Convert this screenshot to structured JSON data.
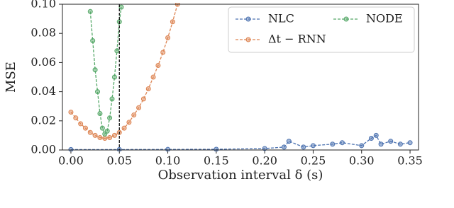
{
  "chart_data": {
    "type": "line",
    "xlabel": "Observation interval δ (s)",
    "ylabel": "MSE",
    "xlim": [
      -0.00875,
      0.35875
    ],
    "ylim": [
      0,
      0.1
    ],
    "xticks": [
      {
        "value": 0,
        "label": "0.00"
      },
      0.05,
      {
        "value": 0.1,
        "label": "0.10"
      },
      0.15,
      {
        "value": 0.2,
        "label": "0.20"
      },
      0.25,
      {
        "value": 0.3,
        "label": "0.30"
      },
      0.35
    ],
    "yticks": [
      {
        "value": 0,
        "label": "0.00"
      },
      0.02,
      0.04,
      0.06,
      0.08,
      {
        "value": 0.1,
        "label": "0.10"
      }
    ],
    "vline_x": 0.05,
    "vline_color": "#000000",
    "legend": "upper right",
    "series": [
      {
        "name": "NLC",
        "color": "#4c72b0",
        "x": [
          0,
          0.05,
          0.1,
          0.15,
          0.2,
          0.22,
          0.225,
          0.24,
          0.25,
          0.27,
          0.28,
          0.3,
          0.31,
          0.315,
          0.32,
          0.33,
          0.34,
          0.35
        ],
        "values": [
          0.0003,
          0.0003,
          0.0004,
          0.0005,
          0.001,
          0.002,
          0.006,
          0.002,
          0.003,
          0.004,
          0.005,
          0.003,
          0.008,
          0.01,
          0.004,
          0.006,
          0.004,
          0.005
        ]
      },
      {
        "name": "Δt − RNN",
        "color": "#dd8452",
        "x": [
          0,
          0.005,
          0.01,
          0.015,
          0.02,
          0.025,
          0.03,
          0.035,
          0.04,
          0.045,
          0.05,
          0.055,
          0.06,
          0.065,
          0.07,
          0.075,
          0.08,
          0.085,
          0.09,
          0.095,
          0.1,
          0.105,
          0.11
        ],
        "values": [
          0.026,
          0.022,
          0.018,
          0.015,
          0.012,
          0.01,
          0.0085,
          0.008,
          0.0085,
          0.01,
          0.012,
          0.015,
          0.019,
          0.024,
          0.029,
          0.035,
          0.042,
          0.05,
          0.058,
          0.067,
          0.077,
          0.088,
          0.1
        ]
      },
      {
        "name": "NODE",
        "color": "#55a868",
        "x": [
          0.02,
          0.0225,
          0.025,
          0.0275,
          0.03,
          0.0325,
          0.035,
          0.0375,
          0.04,
          0.0425,
          0.045,
          0.0475,
          0.05,
          0.052
        ],
        "values": [
          0.095,
          0.075,
          0.055,
          0.04,
          0.025,
          0.015,
          0.011,
          0.013,
          0.022,
          0.035,
          0.05,
          0.068,
          0.088,
          0.098
        ]
      }
    ]
  }
}
